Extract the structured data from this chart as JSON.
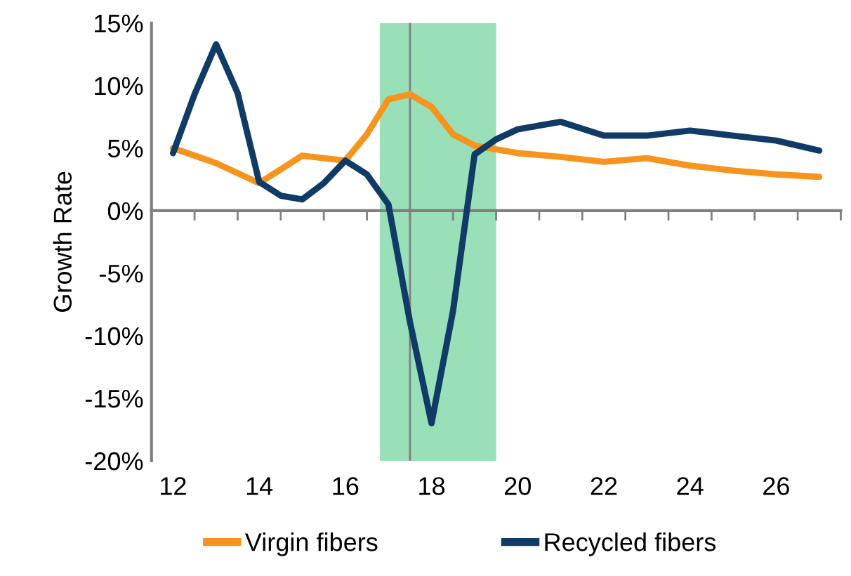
{
  "chart_data": {
    "type": "line",
    "ylabel": "Growth Rate",
    "series": [
      {
        "name": "Virgin fibers",
        "color": "#f7941d",
        "x": [
          12,
          13,
          14,
          15,
          16,
          16.5,
          17,
          17.5,
          18,
          18.5,
          19,
          20,
          21,
          22,
          23,
          24,
          25,
          26,
          27
        ],
        "values": [
          5.0,
          3.8,
          2.2,
          4.4,
          4.0,
          6.1,
          8.9,
          9.3,
          8.3,
          6.1,
          5.2,
          4.6,
          4.3,
          3.9,
          4.2,
          3.6,
          3.2,
          2.9,
          2.7
        ]
      },
      {
        "name": "Recycled fibers",
        "color": "#0f3b66",
        "x": [
          12,
          12.5,
          13,
          13.5,
          14,
          14.5,
          15,
          15.5,
          16,
          16.5,
          17,
          17.5,
          18,
          18.5,
          19,
          19.5,
          20,
          21,
          22,
          23,
          24,
          25,
          26,
          27
        ],
        "values": [
          4.6,
          9.3,
          13.3,
          9.4,
          2.3,
          1.2,
          0.9,
          2.2,
          4.0,
          2.9,
          0.5,
          -8.9,
          -17.0,
          -8.0,
          4.5,
          5.7,
          6.5,
          7.1,
          6.0,
          6.0,
          6.4,
          6.0,
          5.6,
          4.8
        ]
      }
    ],
    "xlim": [
      11.5,
      27.5
    ],
    "xticks": [
      12,
      14,
      16,
      18,
      20,
      22,
      24,
      26
    ],
    "ylim": [
      -20,
      15
    ],
    "yticks": [
      {
        "value": -20,
        "label": "-20%"
      },
      {
        "value": -15,
        "label": "-15%"
      },
      {
        "value": -10,
        "label": "-10%"
      },
      {
        "value": -5,
        "label": "-5%"
      },
      {
        "value": 0,
        "label": "0%"
      },
      {
        "value": 5,
        "label": "5%"
      },
      {
        "value": 10,
        "label": "10%"
      },
      {
        "value": 15,
        "label": "15%"
      }
    ],
    "bands": [
      {
        "axis": "x",
        "from": 16.8,
        "to": 19.5,
        "color": "#99dfb8"
      }
    ],
    "ref_lines": [
      {
        "axis": "x",
        "value": 17.5,
        "color": "#808080",
        "line_style": "solid"
      }
    ],
    "legend": "bottom",
    "marker": "none",
    "line_style": "solid"
  }
}
